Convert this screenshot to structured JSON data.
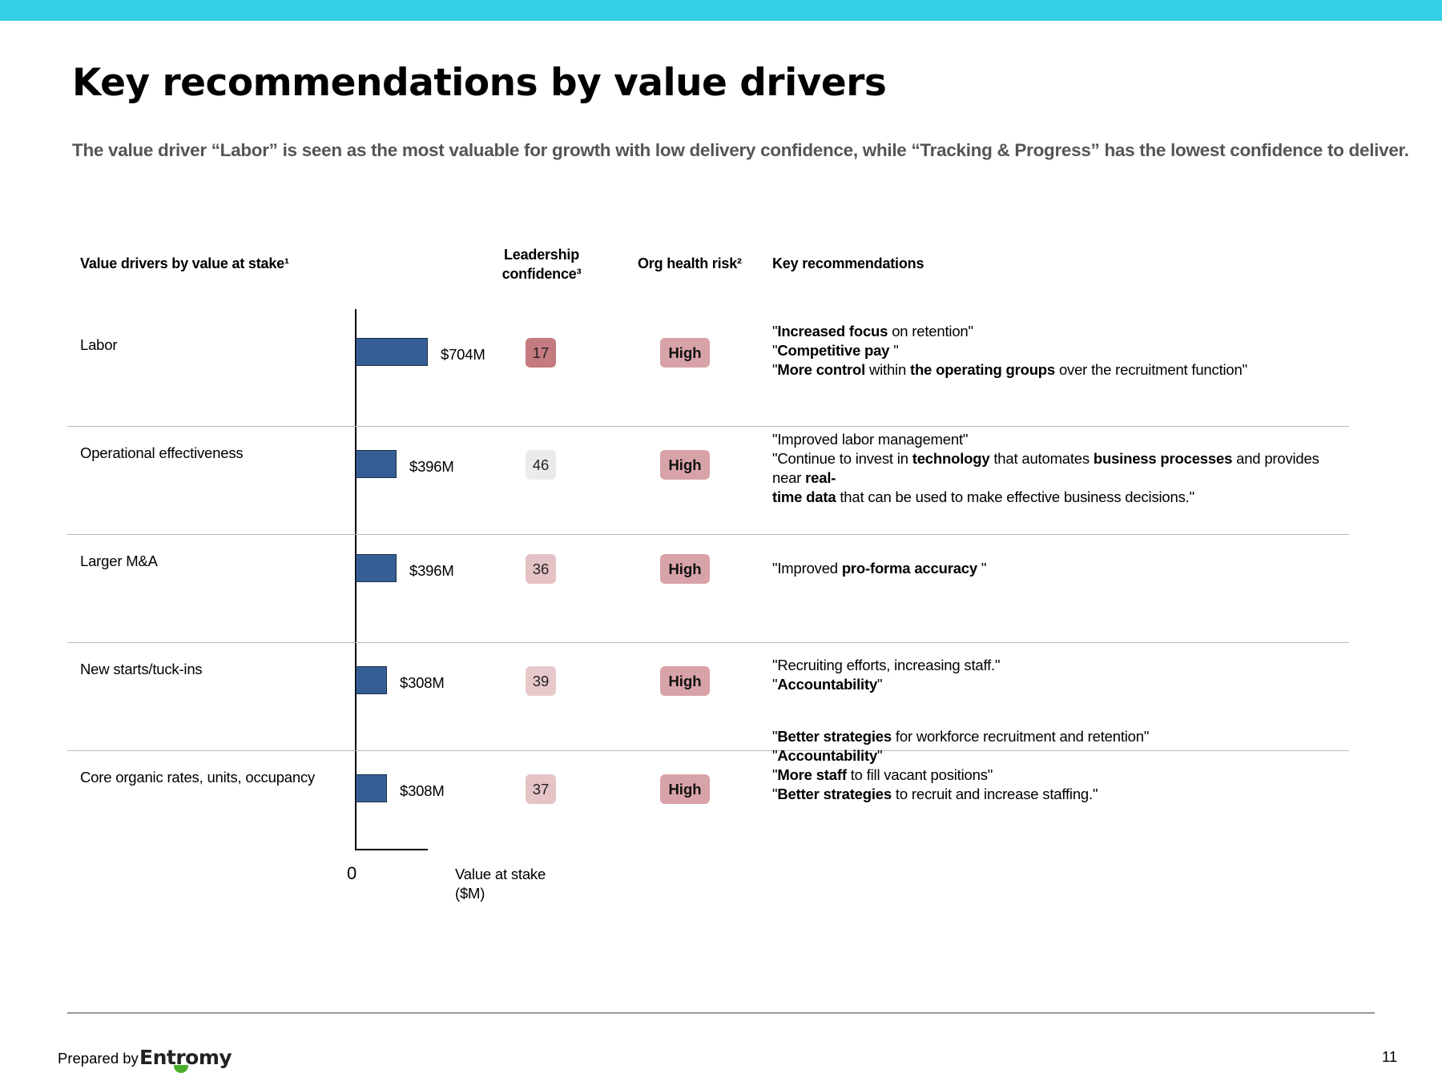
{
  "title": "Key recommendations by value drivers",
  "subtitle": "The value driver “Labor” is seen as the most valuable for growth with low delivery confidence, while “Tracking & Progress” has the lowest confidence to deliver.",
  "headers": {
    "drivers": "Value drivers by value at stake¹",
    "confidence_line1": "Leadership",
    "confidence_line2": "confidence³",
    "risk": "Org health risk²",
    "recommendations": "Key recommendations"
  },
  "axis": {
    "zero_label": "0",
    "title_line1": "Value at stake",
    "title_line2": "($M)"
  },
  "rows": [
    {
      "driver": "Labor",
      "value_label": "$704M",
      "value": 704,
      "confidence": "17",
      "confidence_color": "#c47a7f",
      "risk": "High",
      "recommendations": [
        [
          {
            "t": "\"",
            "b": false
          },
          {
            "t": "Increased focus",
            "b": true
          },
          {
            "t": " on retention\"",
            "b": false
          }
        ],
        [
          {
            "t": "\"",
            "b": false
          },
          {
            "t": "Competitive pay",
            "b": true
          },
          {
            "t": " \"",
            "b": false
          }
        ],
        [
          {
            "t": "\"",
            "b": false
          },
          {
            "t": "More control",
            "b": true
          },
          {
            "t": " within ",
            "b": false
          },
          {
            "t": "the operating groups",
            "b": true
          },
          {
            "t": " over the recruitment function\"",
            "b": false
          }
        ]
      ]
    },
    {
      "driver": "Operational effectiveness",
      "value_label": "$396M",
      "value": 396,
      "confidence": "46",
      "confidence_color": "#ebebeb",
      "risk": "High",
      "recommendations": [
        [
          {
            "t": "\"Improved labor management\"",
            "b": false
          }
        ],
        [
          {
            "t": "\"Continue to invest in ",
            "b": false
          },
          {
            "t": "technology",
            "b": true
          },
          {
            "t": " that automates ",
            "b": false
          },
          {
            "t": "business processes",
            "b": true
          },
          {
            "t": " and provides near ",
            "b": false
          },
          {
            "t": "real-",
            "b": true
          }
        ],
        [
          {
            "t": "time data",
            "b": true
          },
          {
            "t": " that can be used to make effective business decisions.\"",
            "b": false
          }
        ]
      ]
    },
    {
      "driver": "Larger M&A",
      "value_label": "$396M",
      "value": 396,
      "confidence": "36",
      "confidence_color": "#e4c1c4",
      "risk": "High",
      "recommendations": [
        [
          {
            "t": "\"Improved ",
            "b": false
          },
          {
            "t": "pro-forma accuracy",
            "b": true
          },
          {
            "t": " \"",
            "b": false
          }
        ]
      ]
    },
    {
      "driver": "New starts/tuck-ins",
      "value_label": "$308M",
      "value": 308,
      "confidence": "39",
      "confidence_color": "#e8c9cb",
      "risk": "High",
      "recommendations": [
        [
          {
            "t": "\"Recruiting efforts, increasing staff.\"",
            "b": false
          }
        ],
        [
          {
            "t": "\"",
            "b": false
          },
          {
            "t": "Accountability",
            "b": true
          },
          {
            "t": "\"",
            "b": false
          }
        ]
      ]
    },
    {
      "driver": "Core organic rates, units, occupancy",
      "value_label": "$308M",
      "value": 308,
      "confidence": "37",
      "confidence_color": "#e5c3c6",
      "risk": "High",
      "recommendations": [
        [
          {
            "t": "\"",
            "b": false
          },
          {
            "t": "Better strategies",
            "b": true
          },
          {
            "t": " for workforce recruitment and retention\"",
            "b": false
          }
        ],
        [
          {
            "t": "\"",
            "b": false
          },
          {
            "t": "Accountability",
            "b": true
          },
          {
            "t": "\"",
            "b": false
          }
        ],
        [
          {
            "t": "\"",
            "b": false
          },
          {
            "t": "More staff",
            "b": true
          },
          {
            "t": " to fill vacant positions\"",
            "b": false
          }
        ],
        [
          {
            "t": "\"",
            "b": false
          },
          {
            "t": "Better strategies",
            "b": true
          },
          {
            "t": " to recruit and increase staffing.\"",
            "b": false
          }
        ]
      ]
    }
  ],
  "footer": {
    "prepared_by": "Prepared by",
    "brand": "Entromy",
    "page_number": "11"
  }
}
